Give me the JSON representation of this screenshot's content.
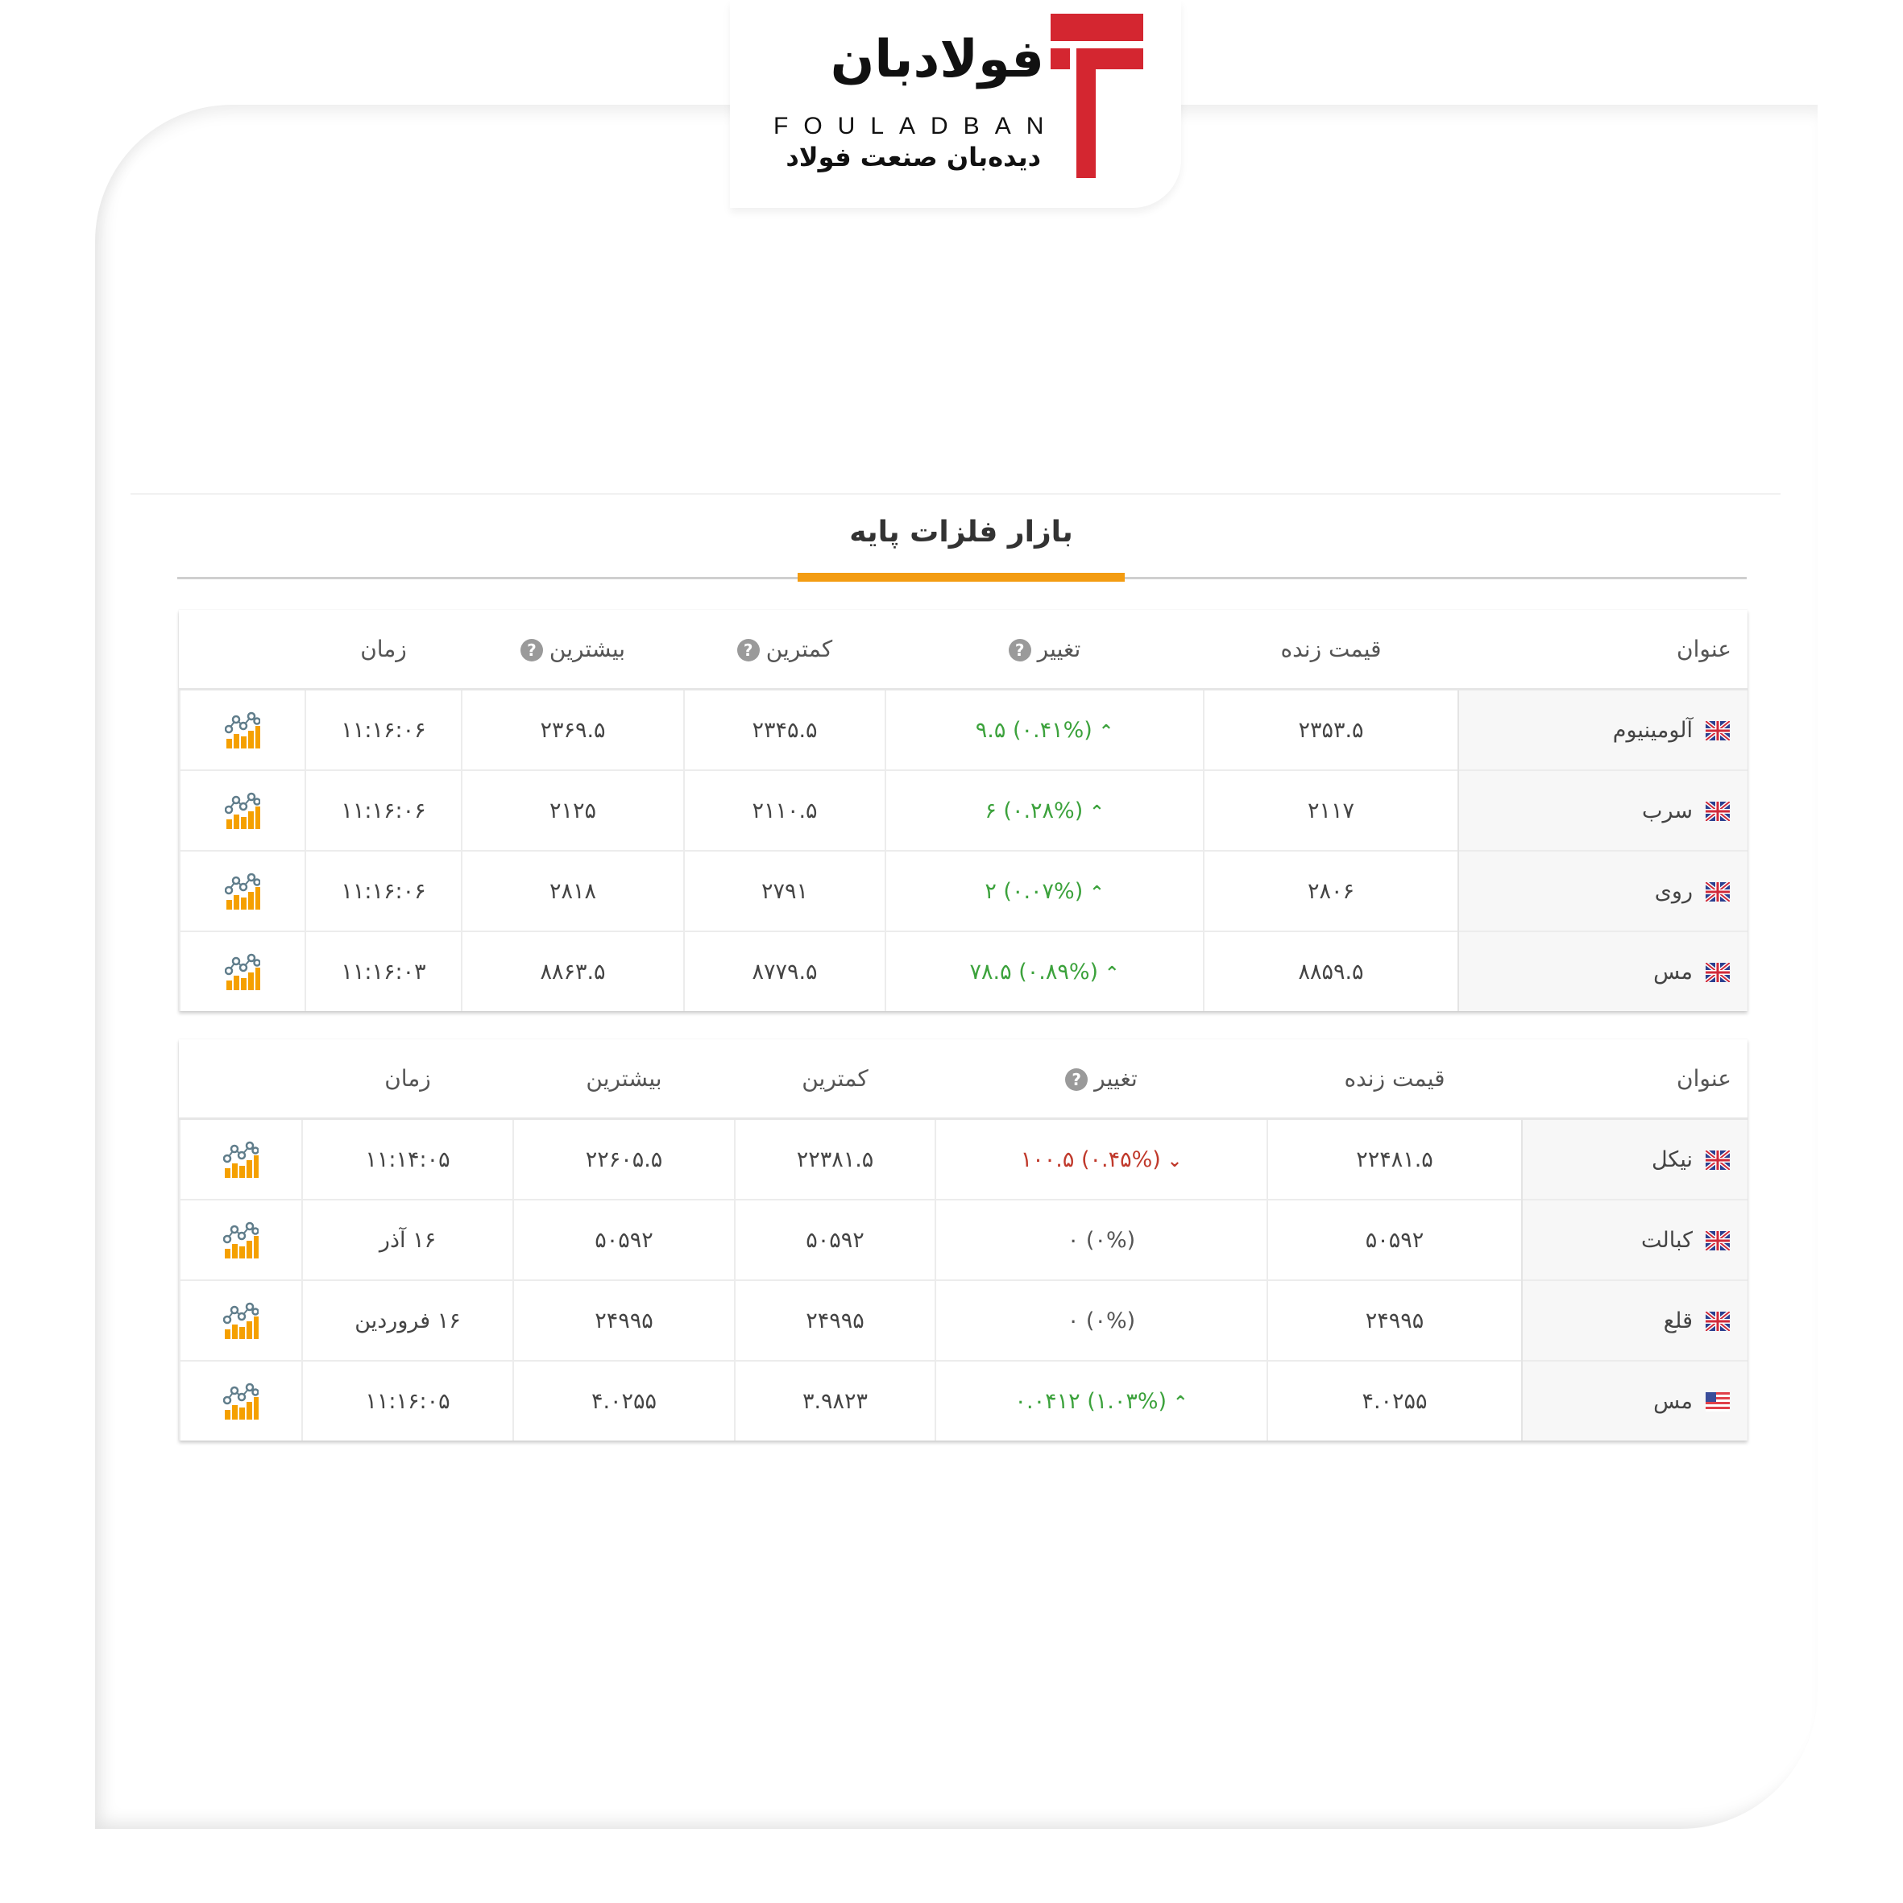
{
  "logo": {
    "fa": "فولادبان",
    "en": "FOULADBAN",
    "tagline": "دیده‌بان صنعت فولاد"
  },
  "section_title": "بازار فلزات پایه",
  "colors": {
    "accent": "#f39c12",
    "brand": "#d42630",
    "up": "#3ca23c",
    "down": "#c0392b"
  },
  "tables": [
    {
      "headers": {
        "title": "عنوان",
        "price": "قیمت زنده",
        "change": "تغییر",
        "min": "کمترین",
        "max": "بیشترین",
        "time": "زمان"
      },
      "help_icon": "?",
      "rows": [
        {
          "flag": "uk-flag",
          "name": "آلومینیوم",
          "price": "۲۳۵۳.۵",
          "change": "۹.۵ (۰.۴۱%)",
          "dir": "up",
          "min": "۲۳۴۵.۵",
          "max": "۲۳۶۹.۵",
          "time": "۱۱:۱۶:۰۶"
        },
        {
          "flag": "uk-flag",
          "name": "سرب",
          "price": "۲۱۱۷",
          "change": "۶ (۰.۲۸%)",
          "dir": "up",
          "min": "۲۱۱۰.۵",
          "max": "۲۱۲۵",
          "time": "۱۱:۱۶:۰۶"
        },
        {
          "flag": "uk-flag",
          "name": "روی",
          "price": "۲۸۰۶",
          "change": "۲ (۰.۰۷%)",
          "dir": "up",
          "min": "۲۷۹۱",
          "max": "۲۸۱۸",
          "time": "۱۱:۱۶:۰۶"
        },
        {
          "flag": "uk-flag",
          "name": "مس",
          "price": "۸۸۵۹.۵",
          "change": "۷۸.۵ (۰.۸۹%)",
          "dir": "up",
          "min": "۸۷۷۹.۵",
          "max": "۸۸۶۳.۵",
          "time": "۱۱:۱۶:۰۳"
        }
      ]
    },
    {
      "headers": {
        "title": "عنوان",
        "price": "قیمت زنده",
        "change": "تغییر",
        "min": "کمترین",
        "max": "بیشترین",
        "time": "زمان"
      },
      "help_icon": "?",
      "rows": [
        {
          "flag": "uk-flag",
          "name": "نیکل",
          "price": "۲۲۴۸۱.۵",
          "change": "۱۰۰.۵ (۰.۴۵%)",
          "dir": "down",
          "min": "۲۲۳۸۱.۵",
          "max": "۲۲۶۰۵.۵",
          "time": "۱۱:۱۴:۰۵"
        },
        {
          "flag": "uk-flag",
          "name": "کبالت",
          "price": "۵۰۵۹۲",
          "change": "۰ (۰%)",
          "dir": "flat",
          "min": "۵۰۵۹۲",
          "max": "۵۰۵۹۲",
          "time": "۱۶ آذر"
        },
        {
          "flag": "uk-flag",
          "name": "قلع",
          "price": "۲۴۹۹۵",
          "change": "۰ (۰%)",
          "dir": "flat",
          "min": "۲۴۹۹۵",
          "max": "۲۴۹۹۵",
          "time": "۱۶ فروردین"
        },
        {
          "flag": "us-flag",
          "name": "مس",
          "price": "۴.۰۲۵۵",
          "change": "۰.۰۴۱۲ (۱.۰۳%)",
          "dir": "up",
          "min": "۳.۹۸۲۳",
          "max": "۴.۰۲۵۵",
          "time": "۱۱:۱۶:۰۵"
        }
      ]
    }
  ]
}
